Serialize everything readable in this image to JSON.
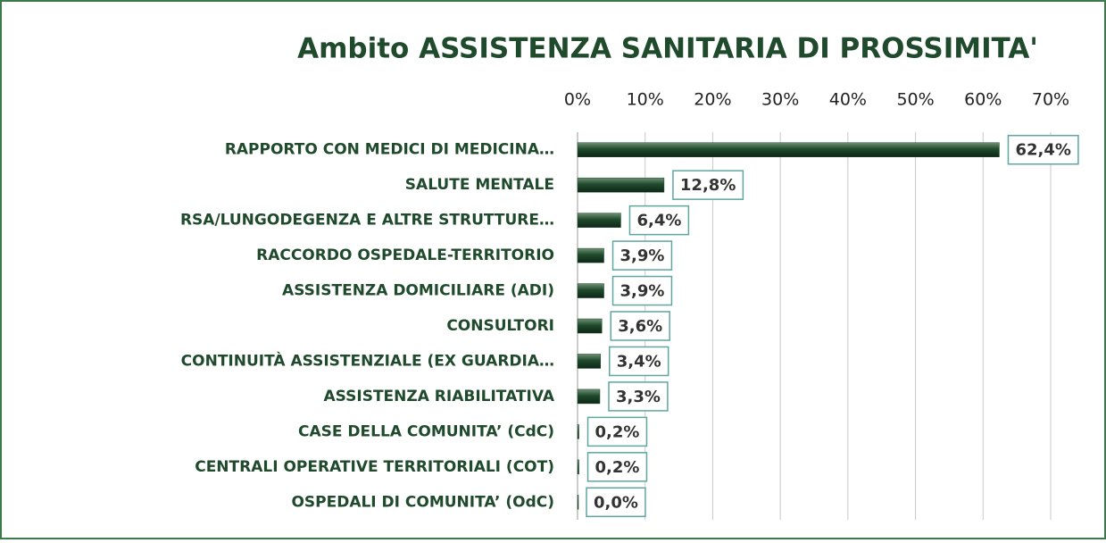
{
  "chart_data": {
    "type": "bar",
    "orientation": "horizontal",
    "title": "Ambito ASSISTENZA SANITARIA DI PROSSIMITA'",
    "categories": [
      "RAPPORTO CON MEDICI DI MEDICINA…",
      "SALUTE MENTALE",
      "RSA/LUNGODEGENZA E ALTRE STRUTTURE…",
      "RACCORDO OSPEDALE-TERRITORIO",
      "ASSISTENZA DOMICILIARE (ADI)",
      "CONSULTORI",
      "CONTINUITÀ ASSISTENZIALE (EX GUARDIA…",
      "ASSISTENZA RIABILITATIVA",
      "CASE DELLA COMUNITA’ (CdC)",
      "CENTRALI OPERATIVE TERRITORIALI (COT)",
      "OSPEDALI DI COMUNITA’ (OdC)"
    ],
    "values": [
      62.4,
      12.8,
      6.4,
      3.9,
      3.9,
      3.6,
      3.4,
      3.3,
      0.2,
      0.2,
      0.0
    ],
    "value_labels": [
      "62,4%",
      "12,8%",
      "6,4%",
      "3,9%",
      "3,9%",
      "3,6%",
      "3,4%",
      "3,3%",
      "0,2%",
      "0,2%",
      "0,0%"
    ],
    "color": "#1f4a2c",
    "xlim": [
      0,
      70
    ],
    "xticks": [
      {
        "value": 0,
        "label": "0%"
      },
      {
        "value": 10,
        "label": "10%"
      },
      {
        "value": 20,
        "label": "20%"
      },
      {
        "value": 30,
        "label": "30%"
      },
      {
        "value": 40,
        "label": "40%"
      },
      {
        "value": 50,
        "label": "50%"
      },
      {
        "value": 60,
        "label": "60%"
      },
      {
        "value": 70,
        "label": "70%"
      }
    ],
    "grid": true
  }
}
